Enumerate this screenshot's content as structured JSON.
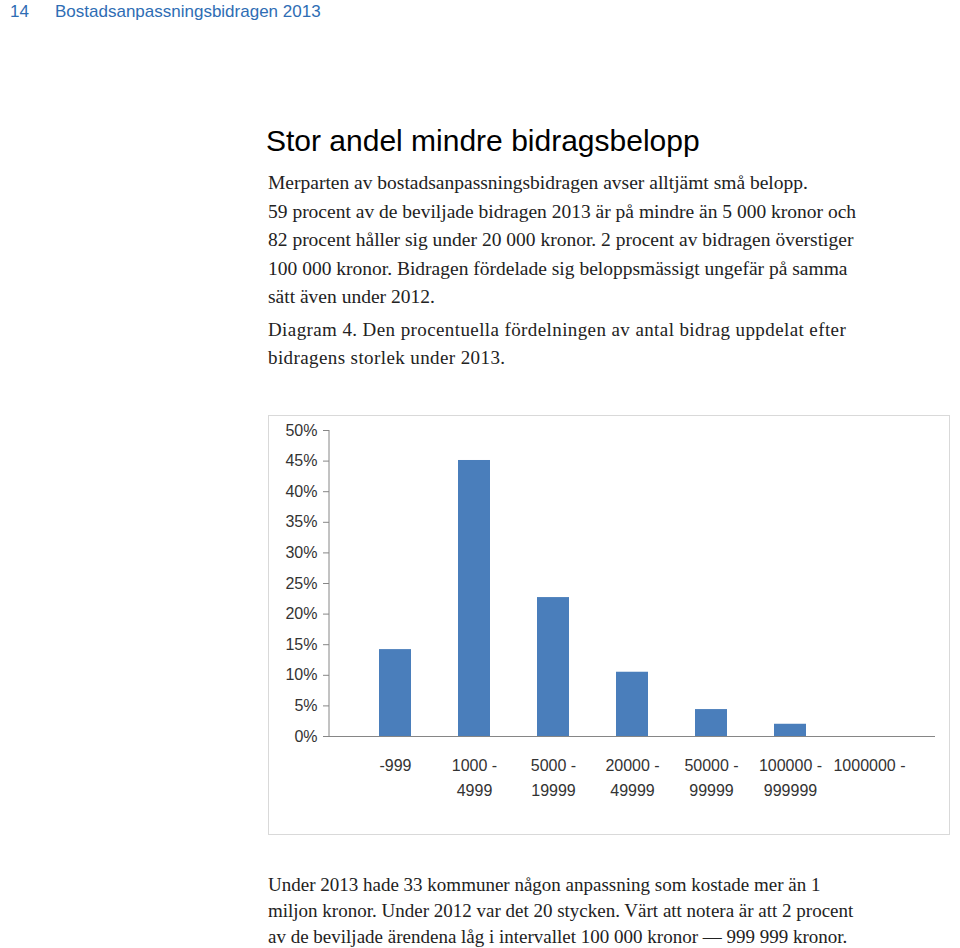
{
  "header": {
    "page": "14",
    "title": "Bostadsanpassningsbidragen 2013"
  },
  "heading": "Stor andel mindre bidragsbelopp",
  "intro_lines": [
    "Merparten av bostadsanpassningsbidragen avser alltjämt små belopp.",
    "59 procent av de beviljade bidragen 2013 är på mindre än 5 000 kronor och",
    "82 procent håller sig under 20 000 kronor. 2 procent av bidragen överstiger",
    "100 000 kronor. Bidragen fördelade sig beloppsmässigt ungefär på samma",
    "sätt även under 2012."
  ],
  "caption_lines": [
    "Diagram 4. Den procentuella fördelningen av antal bidrag uppdelat efter",
    "bidragens storlek under 2013."
  ],
  "chart_data": {
    "type": "bar",
    "categories": [
      "-999",
      "1000 - 4999",
      "5000 - 19999",
      "20000 - 49999",
      "50000 - 99999",
      "100000 - 999999",
      "1000000 -"
    ],
    "values": [
      14.2,
      45.1,
      22.7,
      10.5,
      4.4,
      2.0,
      0
    ],
    "color": "#4a7ebb",
    "ylim": [
      0,
      50
    ],
    "yticks": [
      {
        "value": 0,
        "label": "0%"
      },
      {
        "value": 5,
        "label": "5%"
      },
      {
        "value": 10,
        "label": "10%"
      },
      {
        "value": 15,
        "label": "15%"
      },
      {
        "value": 20,
        "label": "20%"
      },
      {
        "value": 25,
        "label": "25%"
      },
      {
        "value": 30,
        "label": "30%"
      },
      {
        "value": 35,
        "label": "35%"
      },
      {
        "value": 40,
        "label": "40%"
      },
      {
        "value": 45,
        "label": "45%"
      },
      {
        "value": 50,
        "label": "50%"
      }
    ],
    "grid": false
  },
  "footer_lines": [
    "Under 2013 hade 33 kommuner någon anpassning som kostade mer än 1",
    "miljon kronor. Under 2012 var det 20 stycken. Värt att notera är att 2 procent",
    "av de beviljade ärendena låg i intervallet 100 000 kronor — 999 999 kronor."
  ]
}
